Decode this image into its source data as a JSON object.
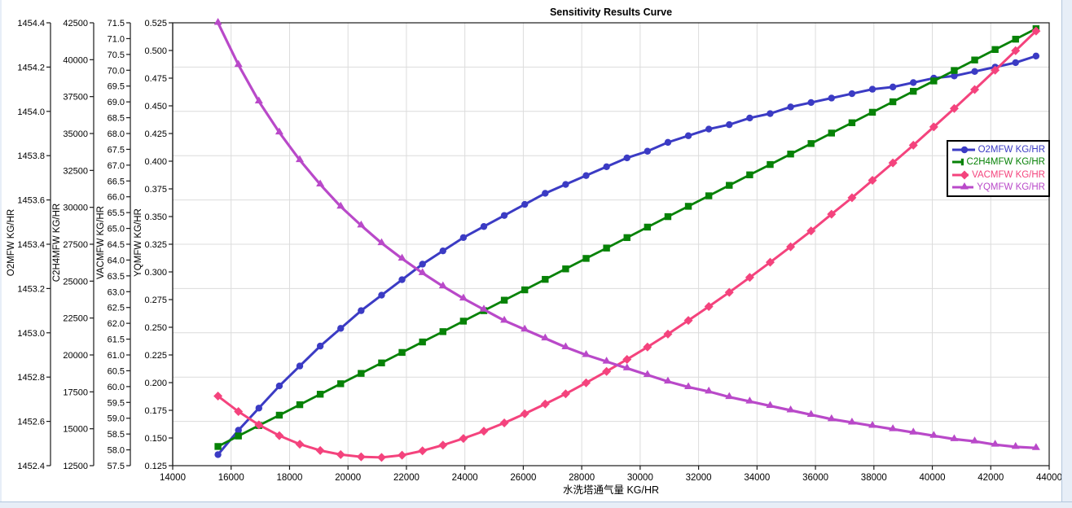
{
  "window": {
    "edge_color": "#e7eef7"
  },
  "chart_data": {
    "type": "line",
    "title": "Sensitivity Results Curve",
    "xlabel": "水洗塔通气量 KG/HR",
    "grid": true,
    "legend_position": "right",
    "x_axis": {
      "min": 14000,
      "max": 44000,
      "tick_step": 2000,
      "decimals": 0
    },
    "y_axes": [
      {
        "id": "O2MFW",
        "label": "O2MFW KG/HR",
        "min": 1452.4,
        "max": 1454.4,
        "tick_step": 0.2,
        "decimals": 1
      },
      {
        "id": "C2H4MFW",
        "label": "C2H4MFW KG/HR",
        "min": 12500,
        "max": 42500,
        "tick_step": 2500,
        "decimals": 0
      },
      {
        "id": "VACMFW",
        "label": "VACMFW KG/HR",
        "min": 57.5,
        "max": 71.5,
        "tick_step": 0.5,
        "decimals": 1
      },
      {
        "id": "YQMFW",
        "label": "YQMFW KG/HR",
        "min": 0.125,
        "max": 0.525,
        "tick_step": 0.025,
        "decimals": 3
      }
    ],
    "x": [
      15550,
      16250,
      16950,
      17650,
      18350,
      19050,
      19750,
      20450,
      21150,
      21850,
      22550,
      23250,
      23950,
      24650,
      25350,
      26050,
      26750,
      27450,
      28150,
      28850,
      29550,
      30250,
      30950,
      31650,
      32350,
      33050,
      33750,
      34450,
      35150,
      35850,
      36550,
      37250,
      37950,
      38650,
      39350,
      40050,
      40750,
      41450,
      42150,
      42850,
      43550
    ],
    "series": [
      {
        "name": "O2MFW KG/HR",
        "axis": "O2MFW",
        "color": "#3b3bc4",
        "marker": "circle",
        "line_width": 3,
        "values": [
          1452.45,
          1452.56,
          1452.66,
          1452.76,
          1452.85,
          1452.94,
          1453.02,
          1453.1,
          1453.17,
          1453.24,
          1453.31,
          1453.37,
          1453.43,
          1453.48,
          1453.53,
          1453.58,
          1453.63,
          1453.67,
          1453.71,
          1453.75,
          1453.79,
          1453.82,
          1453.86,
          1453.89,
          1453.92,
          1453.94,
          1453.97,
          1453.99,
          1454.02,
          1454.04,
          1454.06,
          1454.08,
          1454.1,
          1454.11,
          1454.13,
          1454.15,
          1454.16,
          1454.18,
          1454.2,
          1454.22,
          1454.25
        ]
      },
      {
        "name": "C2H4MFW KG/HR",
        "axis": "C2H4MFW",
        "color": "#078207",
        "marker": "square",
        "line_width": 2.8,
        "values": [
          13800,
          14510,
          15220,
          15920,
          16630,
          17340,
          18050,
          18750,
          19460,
          20170,
          20880,
          21580,
          22290,
          23000,
          23710,
          24410,
          25120,
          25830,
          26540,
          27240,
          27950,
          28660,
          29370,
          30070,
          30780,
          31490,
          32200,
          32900,
          33610,
          34320,
          35030,
          35730,
          36440,
          37150,
          37860,
          38560,
          39270,
          39980,
          40690,
          41390,
          42100
        ]
      },
      {
        "name": "VACMFW KG/HR",
        "axis": "VACMFW",
        "color": "#f4437d",
        "marker": "diamond",
        "line_width": 3,
        "values": [
          59.7,
          59.21,
          58.79,
          58.45,
          58.18,
          57.98,
          57.85,
          57.78,
          57.76,
          57.83,
          57.97,
          58.15,
          58.36,
          58.59,
          58.85,
          59.14,
          59.45,
          59.77,
          60.12,
          60.48,
          60.86,
          61.25,
          61.66,
          62.09,
          62.53,
          62.98,
          63.45,
          63.93,
          64.42,
          64.92,
          65.45,
          65.97,
          66.52,
          67.07,
          67.63,
          68.21,
          68.79,
          69.39,
          70.0,
          70.62,
          71.24
        ]
      },
      {
        "name": "YQMFW KG/HR",
        "axis": "YQMFW",
        "color": "#b949c9",
        "marker": "triangle",
        "line_width": 3.2,
        "values": [
          0.525,
          0.487,
          0.454,
          0.426,
          0.401,
          0.379,
          0.359,
          0.342,
          0.326,
          0.312,
          0.299,
          0.287,
          0.276,
          0.266,
          0.256,
          0.248,
          0.24,
          0.232,
          0.225,
          0.219,
          0.213,
          0.207,
          0.201,
          0.196,
          0.192,
          0.187,
          0.183,
          0.179,
          0.175,
          0.171,
          0.167,
          0.164,
          0.161,
          0.158,
          0.155,
          0.152,
          0.149,
          0.147,
          0.144,
          0.142,
          0.141
        ]
      }
    ],
    "colors": {
      "grid": "#dcdcdc",
      "axis": "#1a1a1a",
      "background": "#ffffff"
    }
  }
}
